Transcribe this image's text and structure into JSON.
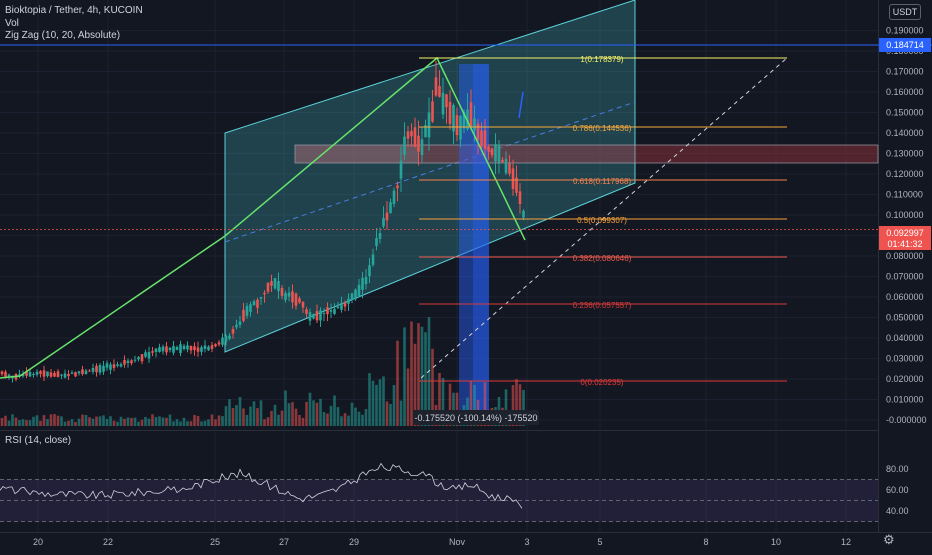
{
  "legend": {
    "symbol": "Bioktopia / Tether, 4h, KUCOIN",
    "vol": "Vol",
    "zigzag": "Zig Zag (10, 20, Absolute)"
  },
  "currency": "USDT",
  "price_axis": [
    "0.190000",
    "0.180000",
    "0.170000",
    "0.160000",
    "0.150000",
    "0.140000",
    "0.130000",
    "0.120000",
    "0.110000",
    "0.100000",
    "0.090000",
    "0.080000",
    "0.070000",
    "0.060000",
    "0.050000",
    "0.040000",
    "0.030000",
    "0.020000",
    "0.010000",
    "-0.000000"
  ],
  "h_line_price": "0.184714",
  "last_price": "0.092997",
  "countdown": "01:41:32",
  "fib_levels": [
    {
      "label": "1(0.178379)",
      "color": "#f7f367"
    },
    {
      "label": "0.786(0.144536)",
      "color": "#f9a93b"
    },
    {
      "label": "0.618(0.117968)",
      "color": "#f7814c"
    },
    {
      "label": "0.5(0.099307)",
      "color": "#f7a23a"
    },
    {
      "label": "0.382(0.080646)",
      "color": "#f05a4a"
    },
    {
      "label": "0.236(0.057557)",
      "color": "#d93a3a"
    },
    {
      "label": "0(0.020235)",
      "color": "#e03a3a"
    }
  ],
  "measure_label": "-0.175520 (-100.14%) -175520",
  "rsi": {
    "title": "RSI (14, close)",
    "axis": [
      "80.00",
      "60.00",
      "40.00"
    ]
  },
  "time_axis": [
    "20",
    "22",
    "25",
    "27",
    "29",
    "Nov",
    "3",
    "5",
    "8",
    "10",
    "12"
  ],
  "colors": {
    "up": "#26a69a",
    "down": "#ef5350",
    "bg": "#131722",
    "channel": "#5ad2d8",
    "zigzag": "#66e36a",
    "hline": "#2962ff"
  }
}
